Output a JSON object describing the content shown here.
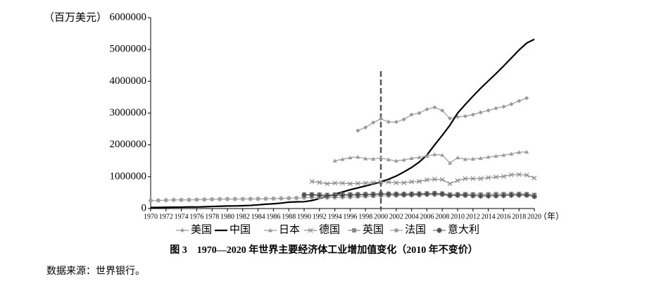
{
  "chart_data": {
    "type": "line",
    "y_label": "（百万美元）",
    "x_label": "（年）",
    "caption": "图 3　1970—2020 年世界主要经济体工业增加值变化（2010 年不变价）",
    "source": "数据来源：世界银行。",
    "x": [
      1970,
      1971,
      1972,
      1973,
      1974,
      1975,
      1976,
      1977,
      1978,
      1979,
      1980,
      1981,
      1982,
      1983,
      1984,
      1985,
      1986,
      1987,
      1988,
      1989,
      1990,
      1991,
      1992,
      1993,
      1994,
      1995,
      1996,
      1997,
      1998,
      1999,
      2000,
      2001,
      2002,
      2003,
      2004,
      2005,
      2006,
      2007,
      2008,
      2009,
      2010,
      2011,
      2012,
      2013,
      2014,
      2015,
      2016,
      2017,
      2018,
      2019,
      2020
    ],
    "xlim": [
      1970,
      2020
    ],
    "xticks": [
      1970,
      1972,
      1974,
      1976,
      1978,
      1980,
      1982,
      1984,
      1986,
      1988,
      1990,
      1992,
      1994,
      1996,
      1998,
      2000,
      2002,
      2004,
      2006,
      2008,
      2010,
      2012,
      2014,
      2016,
      2018,
      2020
    ],
    "ylim": [
      0,
      6000000
    ],
    "yticks": [
      0,
      1000000,
      2000000,
      3000000,
      4000000,
      5000000,
      6000000
    ],
    "reference_line_x": 2000,
    "series": [
      {
        "name": "美国",
        "color": "#9a9a9a",
        "marker": "diamond",
        "values": [
          null,
          null,
          null,
          null,
          null,
          null,
          null,
          null,
          null,
          null,
          null,
          null,
          null,
          null,
          null,
          null,
          null,
          null,
          null,
          null,
          null,
          null,
          null,
          null,
          null,
          null,
          null,
          2450000,
          2550000,
          2700000,
          2820000,
          2720000,
          2720000,
          2800000,
          2950000,
          3000000,
          3120000,
          3180000,
          3080000,
          2830000,
          2880000,
          2900000,
          2950000,
          3020000,
          3080000,
          3150000,
          3200000,
          3280000,
          3380000,
          3470000,
          null
        ]
      },
      {
        "name": "中国",
        "color": "#000000",
        "marker": "none",
        "values": [
          30000,
          35000,
          38000,
          42000,
          43000,
          50000,
          48000,
          55000,
          65000,
          72000,
          80000,
          82000,
          88000,
          98000,
          115000,
          135000,
          150000,
          170000,
          200000,
          210000,
          215000,
          250000,
          310000,
          380000,
          450000,
          520000,
          590000,
          650000,
          710000,
          770000,
          840000,
          920000,
          1020000,
          1150000,
          1290000,
          1460000,
          1680000,
          2000000,
          2300000,
          2620000,
          3000000,
          3270000,
          3530000,
          3780000,
          4010000,
          4240000,
          4480000,
          4730000,
          4980000,
          5200000,
          5320000
        ]
      },
      {
        "name": "日本",
        "color": "#9a9a9a",
        "marker": "triangle",
        "values": [
          null,
          null,
          null,
          null,
          null,
          null,
          null,
          null,
          null,
          null,
          null,
          null,
          null,
          null,
          null,
          null,
          null,
          null,
          null,
          null,
          null,
          null,
          null,
          null,
          1500000,
          1550000,
          1600000,
          1620000,
          1570000,
          1560000,
          1590000,
          1540000,
          1500000,
          1530000,
          1580000,
          1610000,
          1650000,
          1700000,
          1680000,
          1430000,
          1600000,
          1550000,
          1560000,
          1580000,
          1620000,
          1650000,
          1680000,
          1720000,
          1770000,
          1780000,
          null
        ]
      },
      {
        "name": "德国",
        "color": "#8a8a8a",
        "marker": "cross",
        "values": [
          null,
          null,
          null,
          null,
          null,
          null,
          null,
          null,
          null,
          null,
          null,
          null,
          null,
          null,
          null,
          null,
          null,
          null,
          null,
          null,
          null,
          850000,
          820000,
          780000,
          800000,
          800000,
          780000,
          790000,
          800000,
          810000,
          840000,
          830000,
          810000,
          810000,
          840000,
          850000,
          900000,
          920000,
          910000,
          780000,
          880000,
          940000,
          940000,
          940000,
          970000,
          990000,
          1010000,
          1060000,
          1070000,
          1050000,
          960000
        ]
      },
      {
        "name": "英国",
        "color": "#8a8a8a",
        "marker": "square",
        "values": [
          null,
          null,
          null,
          null,
          null,
          null,
          null,
          null,
          null,
          null,
          null,
          null,
          null,
          null,
          null,
          null,
          null,
          null,
          null,
          null,
          440000,
          445000,
          440000,
          430000,
          440000,
          445000,
          445000,
          450000,
          455000,
          460000,
          470000,
          465000,
          460000,
          460000,
          465000,
          470000,
          475000,
          480000,
          470000,
          440000,
          450000,
          455000,
          450000,
          445000,
          450000,
          455000,
          455000,
          460000,
          460000,
          455000,
          430000
        ]
      },
      {
        "name": "法国",
        "color": "#a0a0a0",
        "marker": "circle",
        "values": [
          250000,
          255000,
          262000,
          270000,
          272000,
          270000,
          280000,
          285000,
          290000,
          295000,
          298000,
          298000,
          300000,
          302000,
          305000,
          308000,
          312000,
          318000,
          325000,
          333000,
          340000,
          345000,
          345000,
          340000,
          348000,
          355000,
          358000,
          368000,
          378000,
          388000,
          400000,
          405000,
          408000,
          410000,
          415000,
          418000,
          425000,
          432000,
          428000,
          395000,
          405000,
          410000,
          408000,
          405000,
          410000,
          412000,
          418000,
          425000,
          430000,
          432000,
          400000
        ]
      },
      {
        "name": "意大利",
        "color": "#707070",
        "marker": "star",
        "values": [
          null,
          null,
          null,
          null,
          null,
          null,
          null,
          null,
          null,
          null,
          null,
          null,
          null,
          null,
          null,
          null,
          null,
          null,
          null,
          null,
          420000,
          425000,
          410000,
          400000,
          410000,
          420000,
          420000,
          425000,
          430000,
          435000,
          450000,
          450000,
          445000,
          440000,
          445000,
          450000,
          460000,
          470000,
          455000,
          410000,
          420000,
          420000,
          405000,
          395000,
          395000,
          400000,
          410000,
          420000,
          425000,
          420000,
          380000
        ]
      }
    ]
  }
}
